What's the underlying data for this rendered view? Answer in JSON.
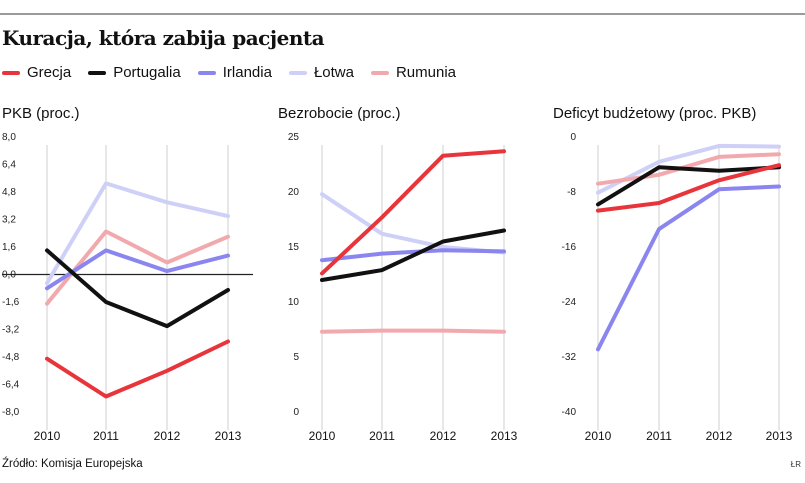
{
  "header": {
    "title": "Kuracja, która zabija pacjenta"
  },
  "legend": [
    {
      "label": "Grecja",
      "color": "#e8343b"
    },
    {
      "label": "Portugalia",
      "color": "#111111"
    },
    {
      "label": "Irlandia",
      "color": "#8b86ef"
    },
    {
      "label": "Łotwa",
      "color": "#cfd0f7"
    },
    {
      "label": "Rumunia",
      "color": "#f2a9ad"
    }
  ],
  "footer": {
    "source": "Źródło: Komisja Europejska",
    "credit": "ŁR"
  },
  "chart_data": [
    {
      "type": "line",
      "title": "PKB (proc.)",
      "x": [
        "2010",
        "2011",
        "2012",
        "2013"
      ],
      "ylim": [
        -8.0,
        8.0
      ],
      "yticks": [
        8.0,
        6.4,
        4.8,
        3.2,
        1.6,
        0.0,
        -1.6,
        -3.2,
        -4.8,
        -6.4,
        -8.0
      ],
      "ytick_labels": [
        "8,0",
        "6,4",
        "4,8",
        "3,2",
        "1,6",
        "0,0",
        "-1,6",
        "-3,2",
        "-4,8",
        "-6,4",
        "-8,0"
      ],
      "zero_line": true,
      "series": [
        {
          "name": "Łotwa",
          "color": "#cfd0f7",
          "values": [
            -0.5,
            5.3,
            4.2,
            3.4
          ]
        },
        {
          "name": "Rumunia",
          "color": "#f2a9ad",
          "values": [
            -1.7,
            2.5,
            0.7,
            2.2
          ]
        },
        {
          "name": "Irlandia",
          "color": "#8b86ef",
          "values": [
            -0.8,
            1.4,
            0.2,
            1.1
          ]
        },
        {
          "name": "Portugalia",
          "color": "#111111",
          "values": [
            1.4,
            -1.6,
            -3.0,
            -0.9
          ]
        },
        {
          "name": "Grecja",
          "color": "#e8343b",
          "values": [
            -4.9,
            -7.1,
            -5.6,
            -3.9
          ]
        }
      ]
    },
    {
      "type": "line",
      "title": "Bezrobocie (proc.)",
      "x": [
        "2010",
        "2011",
        "2012",
        "2013"
      ],
      "ylim": [
        0,
        25
      ],
      "yticks": [
        25,
        20,
        15,
        10,
        5,
        0
      ],
      "ytick_labels": [
        "25",
        "20",
        "15",
        "10",
        "5",
        "0"
      ],
      "zero_line": false,
      "series": [
        {
          "name": "Łotwa",
          "color": "#cfd0f7",
          "values": [
            19.8,
            16.2,
            15.0,
            14.5
          ]
        },
        {
          "name": "Rumunia",
          "color": "#f2a9ad",
          "values": [
            7.3,
            7.4,
            7.4,
            7.3
          ]
        },
        {
          "name": "Irlandia",
          "color": "#8b86ef",
          "values": [
            13.8,
            14.4,
            14.7,
            14.6
          ]
        },
        {
          "name": "Portugalia",
          "color": "#111111",
          "values": [
            12.0,
            12.9,
            15.5,
            16.5
          ]
        },
        {
          "name": "Grecja",
          "color": "#e8343b",
          "values": [
            12.6,
            17.7,
            23.3,
            23.7
          ]
        }
      ]
    },
    {
      "type": "line",
      "title": "Deficyt budżetowy (proc. PKB)",
      "x": [
        "2010",
        "2011",
        "2012",
        "2013"
      ],
      "ylim": [
        -40,
        0
      ],
      "yticks": [
        0,
        -8,
        -16,
        -24,
        -32,
        -40
      ],
      "ytick_labels": [
        "0",
        "-8",
        "-16",
        "-24",
        "-32",
        "-40"
      ],
      "zero_line": false,
      "series": [
        {
          "name": "Łotwa",
          "color": "#cfd0f7",
          "values": [
            -8.1,
            -3.6,
            -1.3,
            -1.4
          ]
        },
        {
          "name": "Rumunia",
          "color": "#f2a9ad",
          "values": [
            -6.8,
            -5.5,
            -2.9,
            -2.5
          ]
        },
        {
          "name": "Irlandia",
          "color": "#8b86ef",
          "values": [
            -30.9,
            -13.4,
            -7.6,
            -7.2
          ]
        },
        {
          "name": "Portugalia",
          "color": "#111111",
          "values": [
            -9.8,
            -4.4,
            -4.9,
            -4.4
          ]
        },
        {
          "name": "Grecja",
          "color": "#e8343b",
          "values": [
            -10.7,
            -9.6,
            -6.3,
            -4.1
          ]
        }
      ]
    }
  ]
}
